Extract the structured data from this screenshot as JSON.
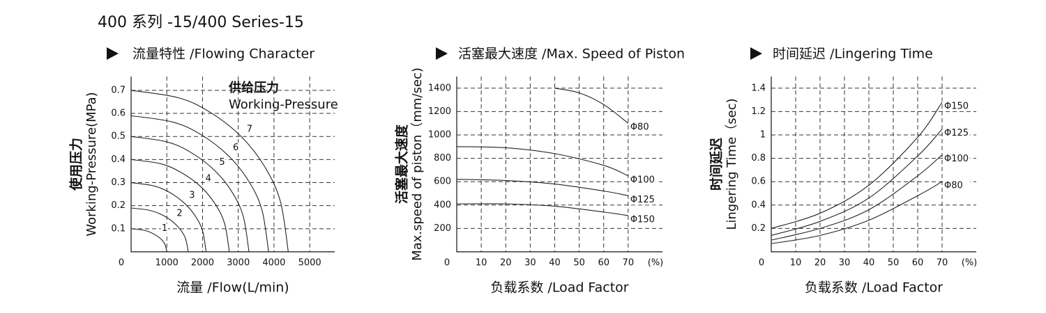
{
  "header": {
    "title": "400 系列 -15/400 Series-15"
  },
  "chart_data": [
    {
      "type": "line",
      "title": "流量特性 /Flowing Character",
      "xlabel": "流量 /Flow(L/min)",
      "ylabel": [
        "使用压力",
        "Working-Pressure(MPa)"
      ],
      "annotations": [
        "供给压力",
        "Working-Pressure"
      ],
      "xlim": [
        0,
        5700
      ],
      "xticks": [
        0,
        1000,
        2000,
        3000,
        4000,
        5000
      ],
      "ylim": [
        0,
        0.76
      ],
      "yticks": [
        0.1,
        0.2,
        0.3,
        0.4,
        0.5,
        0.6,
        0.7
      ],
      "grid": true,
      "series_label_position": "inside",
      "color": "#222222",
      "series": [
        {
          "name": "1",
          "x": [
            0,
            300,
            500,
            700,
            850,
            950,
            1000
          ],
          "values": [
            0.1,
            0.095,
            0.087,
            0.071,
            0.053,
            0.031,
            0
          ]
        },
        {
          "name": "2",
          "x": [
            0,
            480,
            800,
            1120,
            1360,
            1520,
            1600
          ],
          "values": [
            0.19,
            0.181,
            0.165,
            0.136,
            0.1,
            0.059,
            0
          ]
        },
        {
          "name": "3",
          "x": [
            0,
            630,
            1050,
            1470,
            1785,
            1995,
            2100
          ],
          "values": [
            0.3,
            0.286,
            0.26,
            0.214,
            0.158,
            0.094,
            0
          ]
        },
        {
          "name": "4",
          "x": [
            0,
            825,
            1375,
            1925,
            2338,
            2613,
            2750
          ],
          "values": [
            0.4,
            0.382,
            0.346,
            0.286,
            0.211,
            0.125,
            0
          ]
        },
        {
          "name": "5",
          "x": [
            0,
            990,
            1650,
            2310,
            2805,
            3135,
            3300
          ],
          "values": [
            0.5,
            0.477,
            0.433,
            0.357,
            0.264,
            0.156,
            0
          ]
        },
        {
          "name": "6",
          "x": [
            0,
            1155,
            1925,
            2695,
            3273,
            3658,
            3850
          ],
          "values": [
            0.59,
            0.563,
            0.511,
            0.421,
            0.311,
            0.184,
            0
          ]
        },
        {
          "name": "7",
          "x": [
            0,
            1320,
            2200,
            3080,
            3740,
            4180,
            4400
          ],
          "values": [
            0.7,
            0.668,
            0.606,
            0.5,
            0.369,
            0.218,
            0
          ]
        }
      ]
    },
    {
      "type": "line",
      "title": "活塞最大速度 /Max. Speed of Piston",
      "xlabel": "负载系数 /Load Factor",
      "ylabel": [
        "活塞最大速度",
        "Max.speed of piston（mm/sec)"
      ],
      "xunit": "(%)",
      "xlim": [
        0,
        84
      ],
      "xticks": [
        0,
        10,
        20,
        30,
        40,
        50,
        60,
        70
      ],
      "ylim": [
        0,
        1500
      ],
      "yticks": [
        200,
        400,
        600,
        800,
        1000,
        1200,
        1400
      ],
      "grid": true,
      "series_label_position": "end",
      "color": "#222222",
      "series": [
        {
          "name": "Φ80",
          "x": [
            40,
            50,
            60,
            70
          ],
          "values": [
            1400,
            1360,
            1260,
            1100
          ]
        },
        {
          "name": "Φ100",
          "x": [
            0,
            20,
            40,
            60,
            70
          ],
          "values": [
            900,
            890,
            840,
            740,
            650
          ]
        },
        {
          "name": "Φ125",
          "x": [
            0,
            20,
            40,
            60,
            70
          ],
          "values": [
            620,
            610,
            580,
            520,
            480
          ]
        },
        {
          "name": "Φ150",
          "x": [
            0,
            20,
            40,
            60,
            70
          ],
          "values": [
            410,
            410,
            390,
            340,
            310
          ]
        }
      ]
    },
    {
      "type": "line",
      "title": "时间延迟 /Lingering Time",
      "xlabel": "负载系数 /Load Factor",
      "ylabel": [
        "时间延迟",
        "Lingering Time（sec)"
      ],
      "xunit": "(%)",
      "xlim": [
        0,
        84
      ],
      "xticks": [
        0,
        10,
        20,
        30,
        40,
        50,
        60,
        70
      ],
      "ylim": [
        0,
        1.5
      ],
      "yticks": [
        0.2,
        0.4,
        0.6,
        0.8,
        1.0,
        1.2,
        1.4
      ],
      "grid": true,
      "series_label_position": "end",
      "color": "#222222",
      "series": [
        {
          "name": "Φ150",
          "x": [
            0,
            20,
            40,
            60,
            70
          ],
          "values": [
            0.2,
            0.33,
            0.57,
            0.98,
            1.28
          ]
        },
        {
          "name": "Φ125",
          "x": [
            0,
            20,
            40,
            60,
            70
          ],
          "values": [
            0.14,
            0.26,
            0.46,
            0.82,
            1.05
          ]
        },
        {
          "name": "Φ100",
          "x": [
            0,
            20,
            40,
            60,
            70
          ],
          "values": [
            0.1,
            0.2,
            0.36,
            0.65,
            0.83
          ]
        },
        {
          "name": "Φ80",
          "x": [
            0,
            20,
            40,
            60,
            70
          ],
          "values": [
            0.07,
            0.14,
            0.27,
            0.48,
            0.6
          ]
        }
      ]
    }
  ]
}
